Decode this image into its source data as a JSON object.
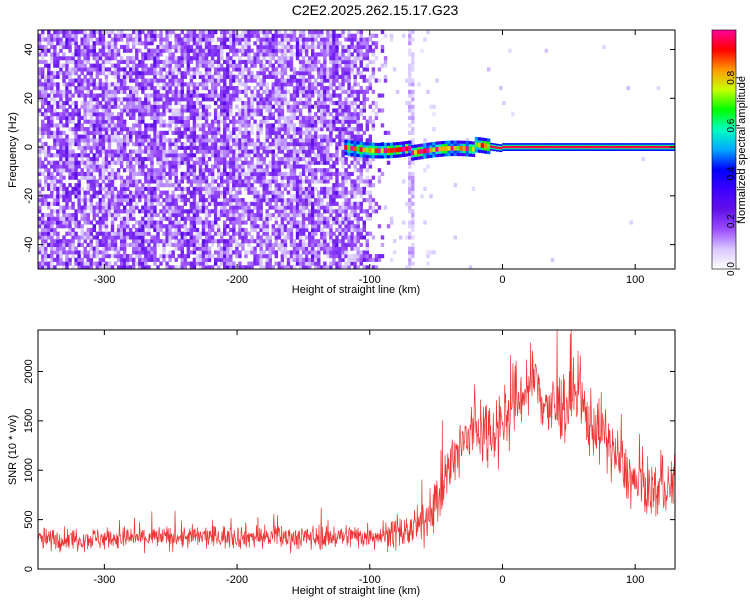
{
  "title": "C2E2.2025.262.15.17.G23",
  "chart_data": [
    {
      "type": "heatmap",
      "xlabel": "Height of straight line (km)",
      "ylabel": "Frequency (Hz)",
      "xlim": [
        -350,
        130
      ],
      "ylim": [
        -50,
        48
      ],
      "xticks": [
        -300,
        -200,
        -100,
        0,
        100
      ],
      "yticks": [
        40,
        20,
        0,
        -20,
        -40
      ],
      "colorbar": {
        "label": "Normalized spectral amplitude",
        "range": [
          0,
          1
        ],
        "ticks": [
          0.0,
          0.2,
          0.4,
          0.6,
          0.8
        ],
        "tick_labels": [
          "0.0",
          "0.2",
          "0.4",
          "0.6",
          "0.8"
        ],
        "colors": [
          "#ffffff",
          "#d8c8ff",
          "#9a4cff",
          "#6010e8",
          "#3c00ff",
          "#0000ff",
          "#00aaff",
          "#00ffc0",
          "#00ff00",
          "#c8ff00",
          "#ff9900",
          "#ff0000",
          "#ff0099"
        ]
      },
      "grid": false,
      "features": {
        "noise_region_x": [
          -350,
          -85
        ],
        "gap_line_x": -68,
        "signal_start_x": -120,
        "signal_line_freq": 0
      }
    },
    {
      "type": "line",
      "xlabel": "Height of straight line (km)",
      "ylabel": "SNR (10 * v/v)",
      "xlim": [
        -350,
        130
      ],
      "ylim": [
        0,
        2420
      ],
      "xticks": [
        -300,
        -200,
        -100,
        0,
        100
      ],
      "yticks": [
        0,
        500,
        1000,
        1500,
        2000
      ],
      "line_color": "#ee3333",
      "grid": false,
      "envelope": [
        {
          "x": -350,
          "y": 300
        },
        {
          "x": -300,
          "y": 310
        },
        {
          "x": -250,
          "y": 320
        },
        {
          "x": -200,
          "y": 330
        },
        {
          "x": -150,
          "y": 320
        },
        {
          "x": -100,
          "y": 340
        },
        {
          "x": -75,
          "y": 360
        },
        {
          "x": -60,
          "y": 450
        },
        {
          "x": -50,
          "y": 700
        },
        {
          "x": -40,
          "y": 1000
        },
        {
          "x": -30,
          "y": 1250
        },
        {
          "x": -20,
          "y": 1450
        },
        {
          "x": -10,
          "y": 1400
        },
        {
          "x": 0,
          "y": 1500
        },
        {
          "x": 10,
          "y": 1700
        },
        {
          "x": 20,
          "y": 1850
        },
        {
          "x": 25,
          "y": 1900
        },
        {
          "x": 35,
          "y": 1600
        },
        {
          "x": 45,
          "y": 1650
        },
        {
          "x": 55,
          "y": 1750
        },
        {
          "x": 65,
          "y": 1500
        },
        {
          "x": 75,
          "y": 1400
        },
        {
          "x": 90,
          "y": 1050
        },
        {
          "x": 100,
          "y": 850
        },
        {
          "x": 115,
          "y": 800
        },
        {
          "x": 130,
          "y": 850
        }
      ],
      "spread": [
        {
          "x": -350,
          "y": 180
        },
        {
          "x": -100,
          "y": 200
        },
        {
          "x": -60,
          "y": 300
        },
        {
          "x": -40,
          "y": 550
        },
        {
          "x": 0,
          "y": 600
        },
        {
          "x": 50,
          "y": 600
        },
        {
          "x": 100,
          "y": 450
        },
        {
          "x": 130,
          "y": 450
        }
      ]
    }
  ]
}
